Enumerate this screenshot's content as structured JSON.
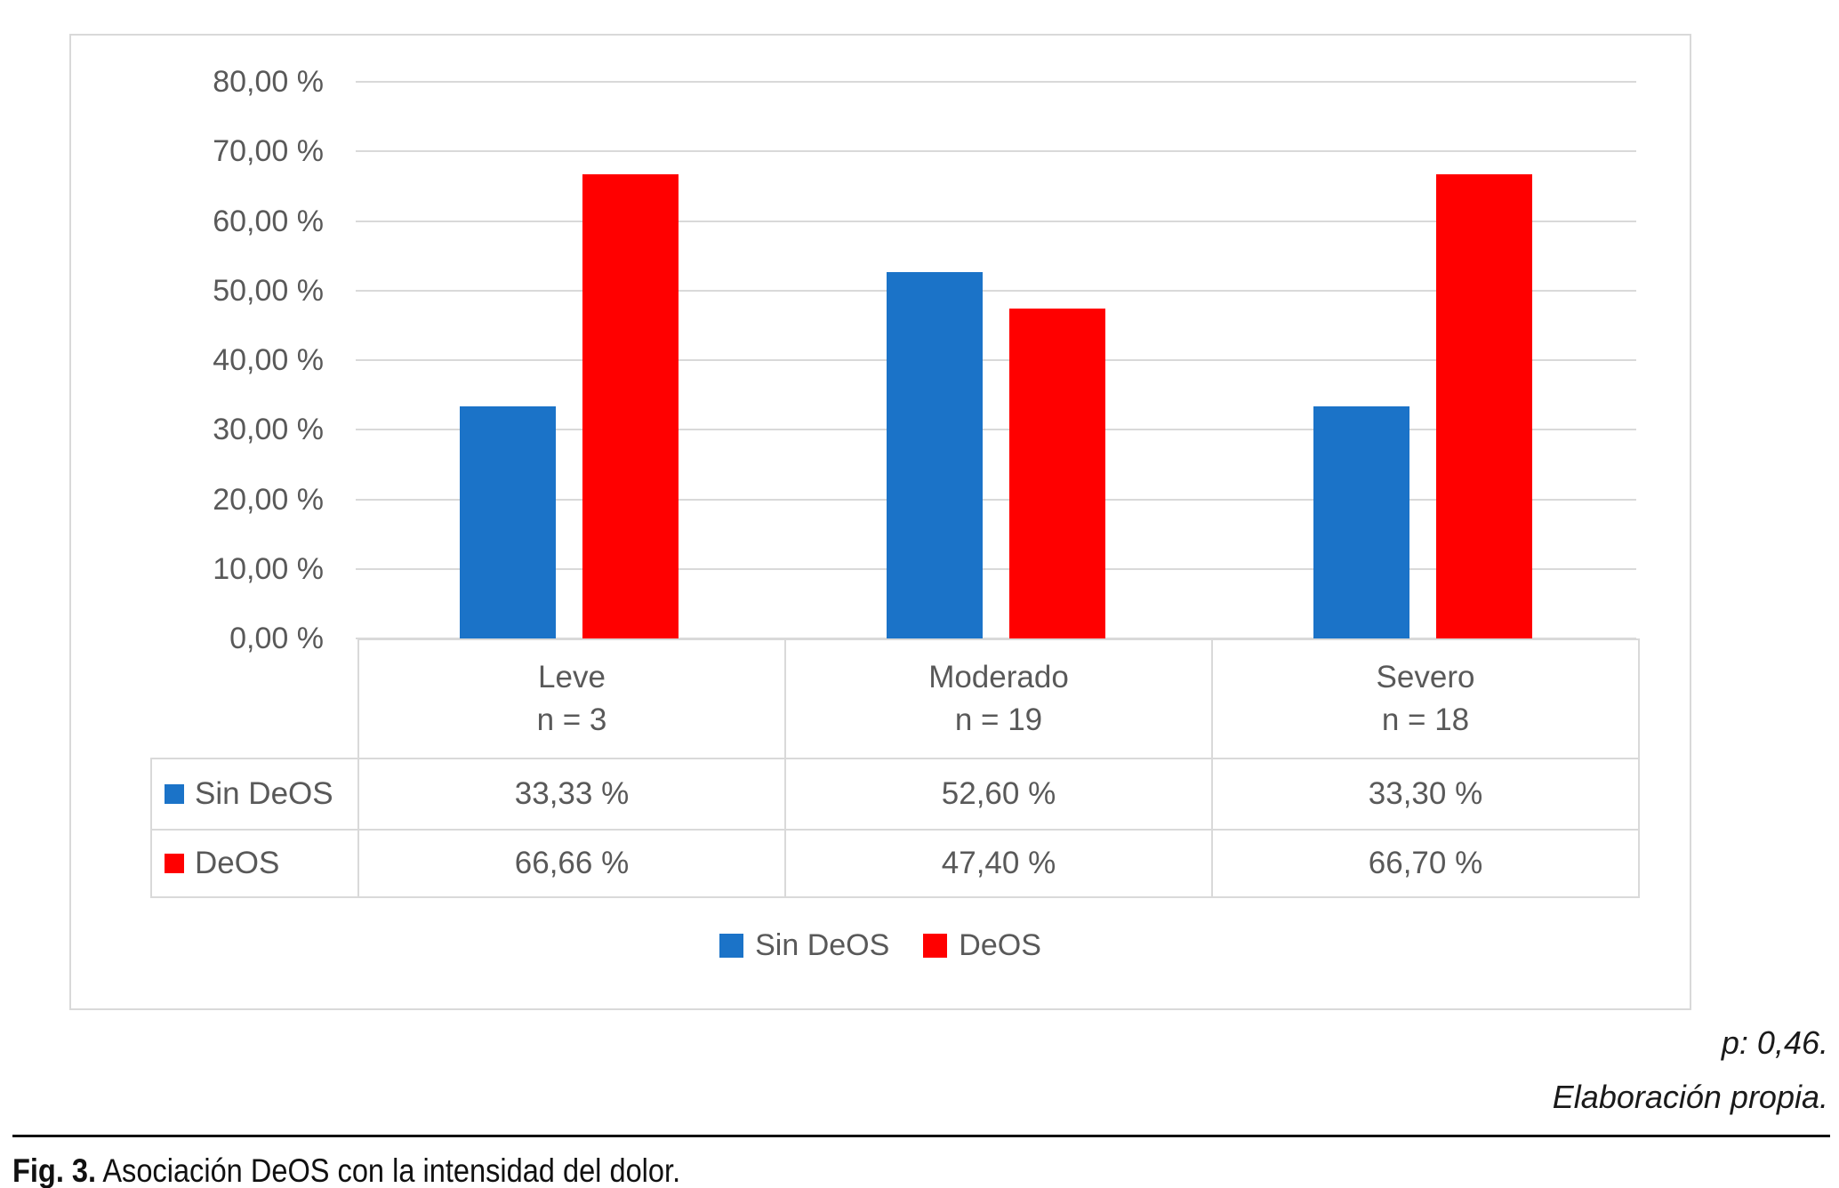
{
  "chart_data": {
    "type": "bar",
    "title": "",
    "categories": [
      {
        "label": "Leve",
        "count": "n = 3"
      },
      {
        "label": "Moderado",
        "count": "n = 19"
      },
      {
        "label": "Severo",
        "count": "n = 18"
      }
    ],
    "series": [
      {
        "name": "Sin DeOS",
        "color": "#1b73c8",
        "values": [
          33.33,
          52.6,
          33.3
        ],
        "value_labels": [
          "33,33 %",
          "52,60 %",
          "33,30 %"
        ]
      },
      {
        "name": "DeOS",
        "color": "#ff0000",
        "values": [
          66.66,
          47.4,
          66.7
        ],
        "value_labels": [
          "66,66 %",
          "47,40 %",
          "66,70 %"
        ]
      }
    ],
    "y_axis": {
      "min": 0,
      "max": 80,
      "step": 10,
      "tick_labels": [
        "80,00 %",
        "70,00 %",
        "60,00 %",
        "50,00 %",
        "40,00 %",
        "30,00 %",
        "20,00 %",
        "10,00 %",
        "0,00 %"
      ]
    },
    "grid": true,
    "legend_position": "bottom",
    "data_table_shown": true
  },
  "notes": {
    "p_value": "p: 0,46.",
    "source": "Elaboración propia."
  },
  "caption": {
    "label": "Fig. 3.",
    "text": " Asociación DeOS con la intensidad del dolor."
  },
  "colors": {
    "axis_text": "#595959",
    "gridline": "#d9d9d9",
    "frame_border": "#d9d9d9",
    "table_border": "#d9d9d9",
    "series_blue": "#1b73c8",
    "series_red": "#ff0000"
  }
}
